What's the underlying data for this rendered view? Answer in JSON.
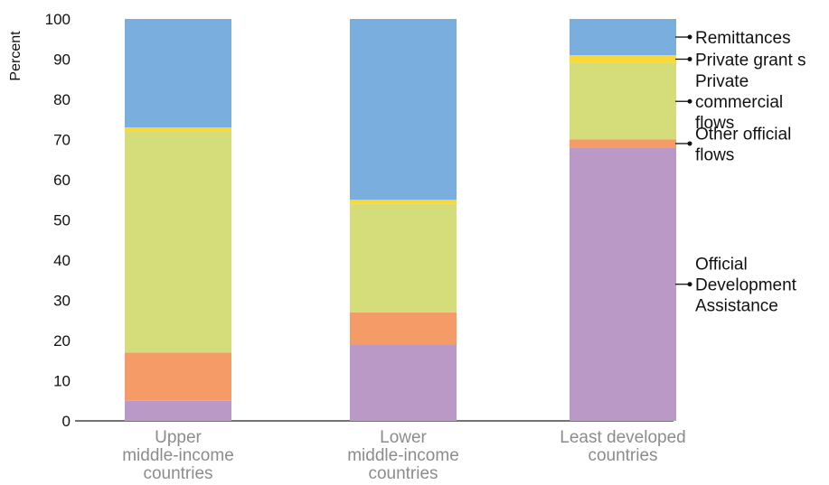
{
  "chart_data": {
    "type": "bar",
    "stacked": true,
    "ylabel": "Percent",
    "ylim": [
      0,
      100
    ],
    "yticks": [
      0,
      10,
      20,
      30,
      40,
      50,
      60,
      70,
      80,
      90,
      100
    ],
    "grid": false,
    "legend_placement": "right",
    "categories": [
      [
        "Upper",
        "middle-income",
        "countries"
      ],
      [
        "Lower",
        "middle-income",
        "countries"
      ],
      [
        "Least developed",
        "countries"
      ]
    ],
    "series": [
      {
        "name": "Official Development Assistance",
        "legend_lines": [
          "Official",
          "Development",
          "Assistance"
        ],
        "color": "#bb99c7",
        "values": [
          5,
          19,
          68
        ]
      },
      {
        "name": "Other official flows",
        "legend_lines": [
          "Other official",
          "flows"
        ],
        "color": "#f49b67",
        "values": [
          12,
          8,
          2
        ]
      },
      {
        "name": "Private commercial flows",
        "legend_lines": [
          "Private",
          "commercial",
          "flows"
        ],
        "color": "#d4dd7a",
        "values": [
          55,
          27,
          19
        ]
      },
      {
        "name": "Private grants",
        "legend_lines": [
          "Private grant s"
        ],
        "color": "#fbd83a",
        "values": [
          1,
          1,
          2
        ]
      },
      {
        "name": "Remittances",
        "legend_lines": [
          "Remittances"
        ],
        "color": "#7aaedf",
        "values": [
          27,
          45,
          9
        ]
      }
    ]
  }
}
